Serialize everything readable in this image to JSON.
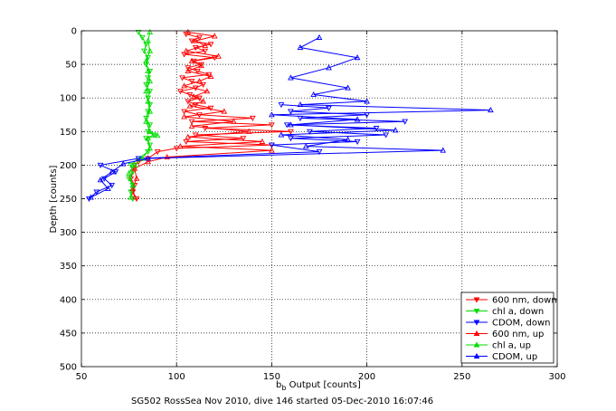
{
  "chart_data": {
    "type": "scatter",
    "title": "",
    "xlabel_main": "b",
    "xlabel_sub": "b",
    "xlabel_rest": " Output [counts]",
    "ylabel": "Depth [counts]",
    "caption": "SG502 RossSea Nov 2010, dive 146 started 05-Dec-2010 16:07:46",
    "xlim": [
      50,
      300
    ],
    "ylim": [
      0,
      500
    ],
    "y_reversed": true,
    "grid": true,
    "legend_position": "bottom-right",
    "xticks": [
      50,
      100,
      150,
      200,
      250,
      300
    ],
    "yticks": [
      0,
      50,
      100,
      150,
      200,
      250,
      300,
      350,
      400,
      450,
      500
    ],
    "series": [
      {
        "name": "600 nm, down",
        "color": "#ff0000",
        "marker": "triangle-down",
        "connected": true,
        "points": [
          [
            105,
            5
          ],
          [
            112,
            10
          ],
          [
            108,
            15
          ],
          [
            118,
            20
          ],
          [
            110,
            25
          ],
          [
            115,
            30
          ],
          [
            104,
            35
          ],
          [
            120,
            40
          ],
          [
            109,
            45
          ],
          [
            113,
            50
          ],
          [
            106,
            55
          ],
          [
            111,
            60
          ],
          [
            117,
            65
          ],
          [
            103,
            70
          ],
          [
            108,
            75
          ],
          [
            114,
            80
          ],
          [
            110,
            85
          ],
          [
            102,
            90
          ],
          [
            107,
            95
          ],
          [
            112,
            100
          ],
          [
            106,
            105
          ],
          [
            110,
            110
          ],
          [
            118,
            115
          ],
          [
            104,
            120
          ],
          [
            112,
            125
          ],
          [
            140,
            130
          ],
          [
            108,
            135
          ],
          [
            150,
            140
          ],
          [
            115,
            145
          ],
          [
            160,
            150
          ],
          [
            110,
            155
          ],
          [
            135,
            160
          ],
          [
            105,
            165
          ],
          [
            150,
            170
          ],
          [
            100,
            175
          ],
          [
            90,
            180
          ],
          [
            85,
            190
          ],
          [
            80,
            195
          ],
          [
            78,
            200
          ],
          [
            77,
            210
          ],
          [
            76,
            220
          ],
          [
            78,
            230
          ],
          [
            77,
            240
          ],
          [
            79,
            250
          ]
        ]
      },
      {
        "name": "chl a, down",
        "color": "#00dd00",
        "marker": "triangle-down",
        "connected": true,
        "points": [
          [
            80,
            2
          ],
          [
            82,
            10
          ],
          [
            84,
            20
          ],
          [
            83,
            30
          ],
          [
            85,
            40
          ],
          [
            84,
            50
          ],
          [
            86,
            60
          ],
          [
            85,
            70
          ],
          [
            84,
            80
          ],
          [
            86,
            90
          ],
          [
            85,
            100
          ],
          [
            86,
            110
          ],
          [
            85,
            120
          ],
          [
            84,
            130
          ],
          [
            86,
            140
          ],
          [
            85,
            150
          ],
          [
            88,
            155
          ],
          [
            84,
            160
          ],
          [
            86,
            170
          ],
          [
            85,
            180
          ],
          [
            80,
            190
          ],
          [
            76,
            200
          ],
          [
            77,
            210
          ],
          [
            75,
            220
          ],
          [
            77,
            230
          ],
          [
            76,
            240
          ],
          [
            77,
            250
          ]
        ]
      },
      {
        "name": "CDOM, down",
        "color": "#0000ff",
        "marker": "triangle-down",
        "connected": true,
        "points": [
          [
            155,
            110
          ],
          [
            180,
            115
          ],
          [
            160,
            120
          ],
          [
            200,
            125
          ],
          [
            165,
            130
          ],
          [
            220,
            135
          ],
          [
            158,
            140
          ],
          [
            205,
            145
          ],
          [
            170,
            150
          ],
          [
            210,
            155
          ],
          [
            160,
            160
          ],
          [
            195,
            165
          ],
          [
            150,
            170
          ],
          [
            175,
            180
          ],
          [
            80,
            190
          ],
          [
            60,
            200
          ],
          [
            68,
            210
          ],
          [
            62,
            220
          ],
          [
            66,
            230
          ],
          [
            58,
            240
          ],
          [
            54,
            250
          ]
        ]
      },
      {
        "name": "600 nm, up",
        "color": "#ff0000",
        "marker": "triangle-up",
        "connected": true,
        "points": [
          [
            78,
            248
          ],
          [
            77,
            235
          ],
          [
            79,
            220
          ],
          [
            78,
            205
          ],
          [
            85,
            195
          ],
          [
            95,
            188
          ],
          [
            150,
            178
          ],
          [
            102,
            172
          ],
          [
            145,
            165
          ],
          [
            106,
            158
          ],
          [
            138,
            150
          ],
          [
            108,
            142
          ],
          [
            130,
            135
          ],
          [
            104,
            128
          ],
          [
            125,
            120
          ],
          [
            107,
            112
          ],
          [
            114,
            105
          ],
          [
            109,
            98
          ],
          [
            116,
            90
          ],
          [
            104,
            82
          ],
          [
            112,
            75
          ],
          [
            118,
            68
          ],
          [
            106,
            60
          ],
          [
            113,
            52
          ],
          [
            108,
            45
          ],
          [
            122,
            38
          ],
          [
            105,
            30
          ],
          [
            115,
            22
          ],
          [
            110,
            15
          ],
          [
            120,
            8
          ],
          [
            106,
            2
          ]
        ]
      },
      {
        "name": "chl a, up",
        "color": "#00dd00",
        "marker": "triangle-up",
        "connected": true,
        "points": [
          [
            76,
            248
          ],
          [
            77,
            230
          ],
          [
            75,
            212
          ],
          [
            78,
            200
          ],
          [
            82,
            190
          ],
          [
            86,
            175
          ],
          [
            85,
            160
          ],
          [
            90,
            156
          ],
          [
            86,
            150
          ],
          [
            84,
            135
          ],
          [
            86,
            120
          ],
          [
            85,
            105
          ],
          [
            84,
            90
          ],
          [
            86,
            75
          ],
          [
            85,
            60
          ],
          [
            84,
            45
          ],
          [
            86,
            30
          ],
          [
            85,
            15
          ],
          [
            86,
            2
          ]
        ]
      },
      {
        "name": "CDOM, up",
        "color": "#0000ff",
        "marker": "triangle-up",
        "connected": true,
        "points": [
          [
            55,
            248
          ],
          [
            64,
            235
          ],
          [
            60,
            222
          ],
          [
            66,
            210
          ],
          [
            72,
            198
          ],
          [
            85,
            190
          ],
          [
            240,
            178
          ],
          [
            168,
            172
          ],
          [
            190,
            162
          ],
          [
            155,
            155
          ],
          [
            215,
            148
          ],
          [
            160,
            140
          ],
          [
            195,
            132
          ],
          [
            150,
            125
          ],
          [
            265,
            118
          ],
          [
            165,
            110
          ],
          [
            200,
            105
          ],
          [
            172,
            95
          ],
          [
            190,
            85
          ],
          [
            160,
            70
          ],
          [
            180,
            55
          ],
          [
            195,
            40
          ],
          [
            165,
            25
          ],
          [
            175,
            10
          ]
        ]
      }
    ]
  }
}
